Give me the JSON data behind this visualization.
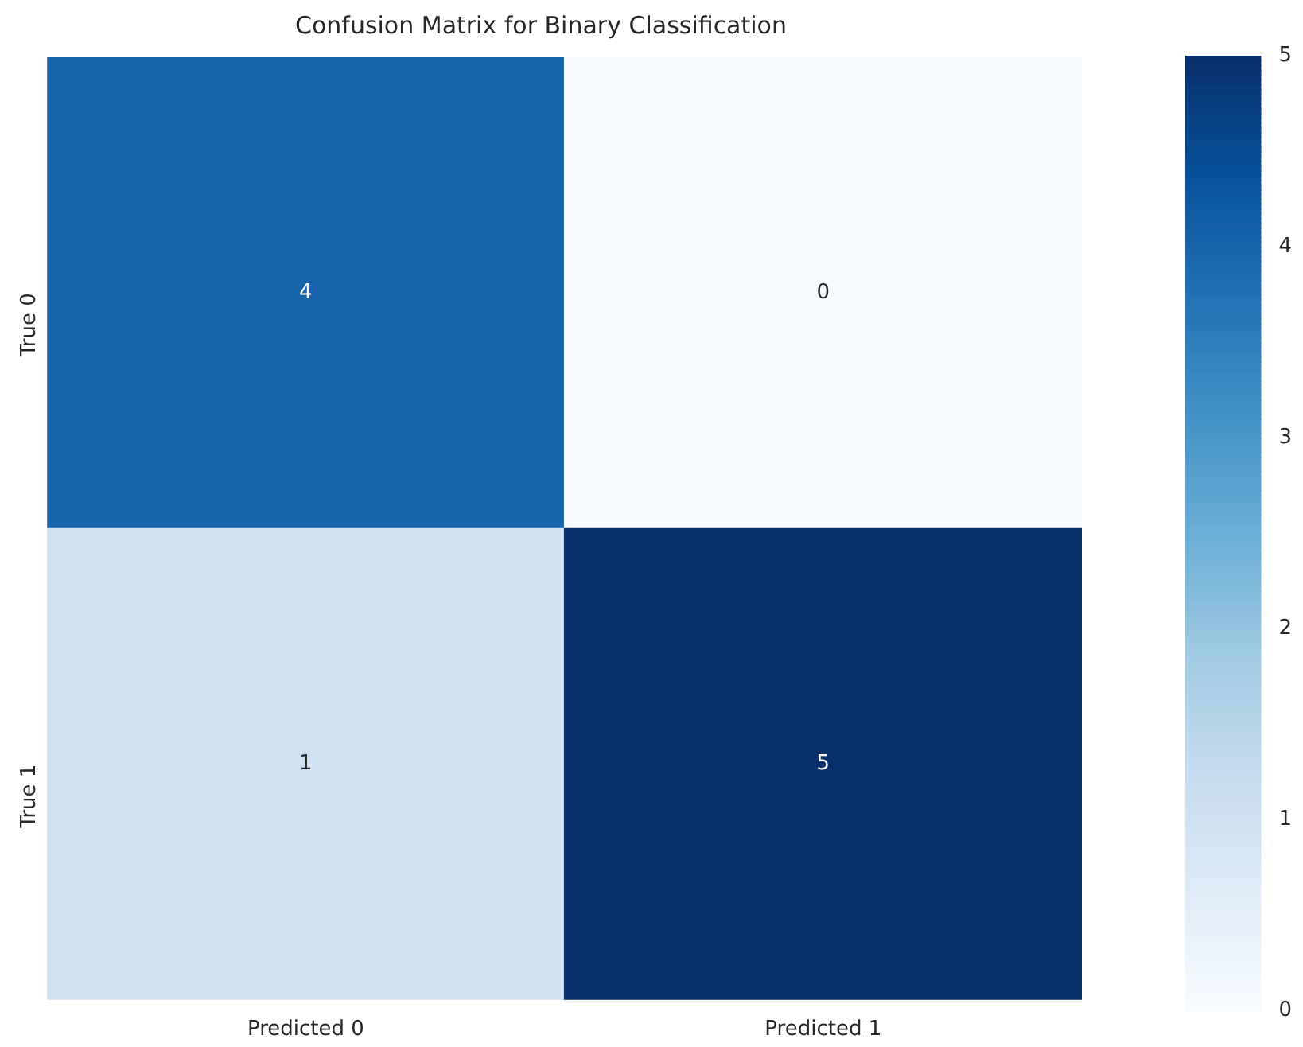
{
  "chart_data": {
    "type": "heatmap",
    "title": "Confusion Matrix for Binary Classification",
    "categories": [
      "Predicted 0",
      "Predicted 1"
    ],
    "y_categories": [
      "True 0",
      "True 1"
    ],
    "cells": [
      [
        4,
        0
      ],
      [
        1,
        5
      ]
    ],
    "clim": [
      0,
      5
    ],
    "cticks": [
      0,
      1,
      2,
      3,
      4,
      5
    ],
    "data_labels": true
  }
}
